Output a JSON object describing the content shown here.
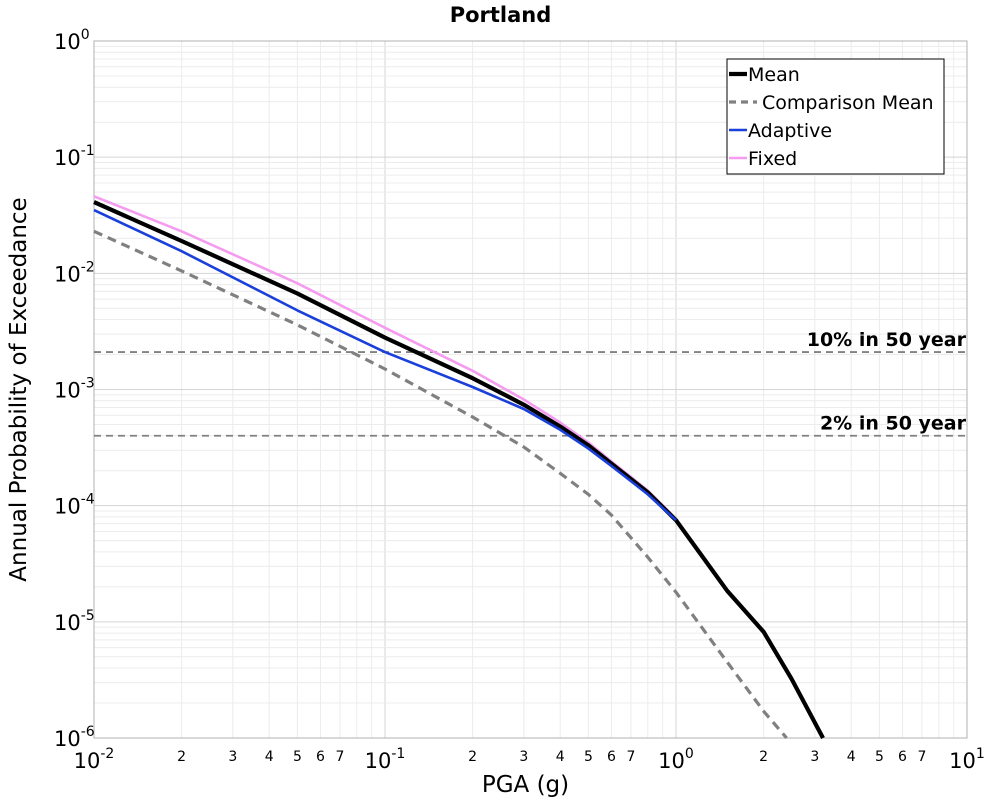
{
  "chart_data": {
    "type": "line",
    "title": "Portland",
    "xlabel": "PGA (g)",
    "ylabel": "Annual Probability of Exceedance",
    "x_scale": "log",
    "y_scale": "log",
    "xlim": [
      0.01,
      10
    ],
    "ylim": [
      1e-06,
      1
    ],
    "grid": true,
    "legend_position": "top-right",
    "x_major_ticks": [
      {
        "base": "10",
        "exp": "-2"
      },
      {
        "base": "10",
        "exp": "-1"
      },
      {
        "base": "10",
        "exp": "0"
      },
      {
        "base": "10",
        "exp": "1"
      }
    ],
    "x_minor_tick_labels": [
      "2",
      "3",
      "4",
      "5",
      "6",
      "7"
    ],
    "y_major_ticks": [
      {
        "base": "10",
        "exp": "0"
      },
      {
        "base": "10",
        "exp": "-1"
      },
      {
        "base": "10",
        "exp": "-2"
      },
      {
        "base": "10",
        "exp": "-3"
      },
      {
        "base": "10",
        "exp": "-4"
      },
      {
        "base": "10",
        "exp": "-5"
      },
      {
        "base": "10",
        "exp": "-6"
      }
    ],
    "series": [
      {
        "name": "Mean",
        "color": "#000000",
        "style": "solid-thick",
        "x": [
          0.01,
          0.02,
          0.05,
          0.1,
          0.2,
          0.3,
          0.4,
          0.5,
          0.6,
          0.8,
          1.0,
          1.2,
          1.5,
          2.0,
          2.5,
          3.2
        ],
        "y": [
          0.041,
          0.019,
          0.0067,
          0.0028,
          0.00125,
          0.00074,
          0.00048,
          0.00033,
          0.00023,
          0.00013,
          7.5e-05,
          4e-05,
          1.85e-05,
          8.2e-06,
          3.2e-06,
          1e-06
        ]
      },
      {
        "name": "Comparison Mean",
        "color": "#808080",
        "style": "dashed",
        "x": [
          0.01,
          0.02,
          0.05,
          0.1,
          0.2,
          0.3,
          0.4,
          0.5,
          0.6,
          0.8,
          1.0,
          1.5,
          2.0,
          2.4
        ],
        "y": [
          0.023,
          0.0105,
          0.0036,
          0.0015,
          0.00058,
          0.00032,
          0.00019,
          0.000125,
          8.3e-05,
          3.6e-05,
          1.8e-05,
          4.5e-06,
          1.7e-06,
          1e-06
        ]
      },
      {
        "name": "Adaptive",
        "color": "#1a3fdb",
        "style": "solid",
        "x": [
          0.01,
          0.02,
          0.05,
          0.1,
          0.2,
          0.3,
          0.4,
          0.5,
          0.6,
          0.8,
          1.0
        ],
        "y": [
          0.035,
          0.0155,
          0.0048,
          0.0021,
          0.00105,
          0.00068,
          0.00045,
          0.00031,
          0.00022,
          0.000125,
          7.5e-05
        ]
      },
      {
        "name": "Fixed",
        "color": "#f59cf0",
        "style": "solid",
        "x": [
          0.01,
          0.02,
          0.05,
          0.1,
          0.2,
          0.3,
          0.4,
          0.5,
          0.6,
          0.8,
          1.0
        ],
        "y": [
          0.046,
          0.023,
          0.0082,
          0.0034,
          0.00145,
          0.00082,
          0.00052,
          0.00035,
          0.00024,
          0.000135,
          7.7e-05
        ]
      }
    ],
    "reference_lines": [
      {
        "label": "10% in 50 year",
        "y": 0.0021,
        "color": "#808080",
        "style": "dashed"
      },
      {
        "label": "2% in 50 year",
        "y": 0.0004,
        "color": "#808080",
        "style": "dashed"
      }
    ]
  }
}
